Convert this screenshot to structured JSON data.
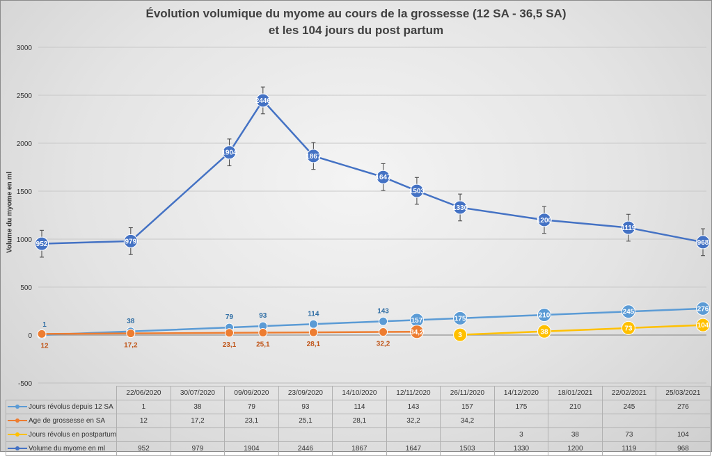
{
  "chart_data": {
    "type": "line",
    "title_line1": "Évolution volumique du myome au cours de la grossesse (12 SA - 36,5 SA)",
    "title_line2": "et les 104 jours du post partum",
    "ylabel": "Volume du myome en ml",
    "ylim": [
      -500,
      3000
    ],
    "yticks": [
      "-500",
      "0",
      "500",
      "1000",
      "1500",
      "2000",
      "2500",
      "3000"
    ],
    "grid": true,
    "error_bar": 140,
    "categories": [
      "22/06/2020",
      "30/07/2020",
      "09/09/2020",
      "23/09/2020",
      "14/10/2020",
      "12/11/2020",
      "26/11/2020",
      "14/12/2020",
      "18/01/2021",
      "22/02/2021",
      "25/03/2021"
    ],
    "x_days": [
      1,
      38,
      79,
      93,
      114,
      143,
      157,
      175,
      210,
      245,
      276
    ],
    "series": [
      {
        "name": "Jours révolus depuis 12 SA",
        "color": "#5b9bd5",
        "values": [
          "1",
          "38",
          "79",
          "93",
          "114",
          "143",
          "157",
          "175",
          "210",
          "245",
          "276"
        ]
      },
      {
        "name": "Age de grossesse en SA",
        "color": "#ed7d31",
        "values": [
          "12",
          "17,2",
          "23,1",
          "25,1",
          "28,1",
          "32,2",
          "34,2",
          "",
          "",
          "",
          ""
        ]
      },
      {
        "name": "Jours révolus en postpartum",
        "color": "#ffc000",
        "values": [
          "",
          "",
          "",
          "",
          "",
          "",
          "",
          "3",
          "38",
          "73",
          "104"
        ]
      },
      {
        "name": "Volume du myome en ml",
        "color": "#4472c4",
        "values": [
          "952",
          "979",
          "1904",
          "2446",
          "1867",
          "1647",
          "1503",
          "1330",
          "1200",
          "1119",
          "968"
        ]
      }
    ]
  }
}
